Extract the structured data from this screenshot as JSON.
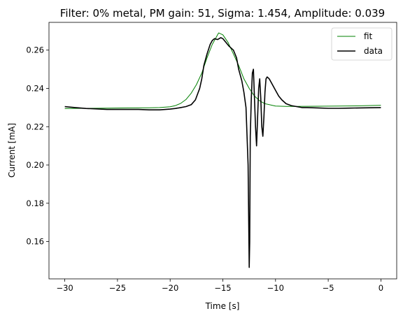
{
  "chart_data": {
    "type": "line",
    "title": "Filter: 0% metal, PM gain: 51, Sigma: 1.454, Amplitude: 0.039",
    "xlabel": "Time [s]",
    "ylabel": "Current [mA]",
    "xlim": [
      -31.5,
      1.5
    ],
    "ylim": [
      0.1405,
      0.2745
    ],
    "xticks": [
      -30,
      -25,
      -20,
      -15,
      -10,
      -5,
      0
    ],
    "xtick_labels": [
      "−30",
      "−25",
      "−20",
      "−15",
      "−10",
      "−5",
      "0"
    ],
    "yticks": [
      0.16,
      0.18,
      0.2,
      0.22,
      0.24,
      0.26
    ],
    "ytick_labels": [
      "0.16",
      "0.18",
      "0.20",
      "0.22",
      "0.24",
      "0.26"
    ],
    "grid": false,
    "legend_position": "top-right",
    "series": [
      {
        "name": "fit",
        "color": "#008000",
        "line_width": 1,
        "x": [
          -30,
          -28,
          -26,
          -24,
          -22,
          -21,
          -20,
          -19.5,
          -19,
          -18.5,
          -18,
          -17.5,
          -17,
          -16.5,
          -16,
          -15.5,
          -15.4,
          -15,
          -14.5,
          -14,
          -13.5,
          -13,
          -12.5,
          -12,
          -11.5,
          -11,
          -10,
          -9,
          -8,
          -6,
          -4,
          -2,
          0
        ],
        "y": [
          0.2295,
          0.2296,
          0.2297,
          0.2298,
          0.2299,
          0.23,
          0.2304,
          0.231,
          0.2322,
          0.2342,
          0.2375,
          0.242,
          0.248,
          0.256,
          0.263,
          0.268,
          0.269,
          0.268,
          0.264,
          0.258,
          0.252,
          0.245,
          0.24,
          0.236,
          0.2335,
          0.232,
          0.2308,
          0.2306,
          0.2306,
          0.2307,
          0.2308,
          0.2309,
          0.2312
        ]
      },
      {
        "name": "data",
        "color": "#000000",
        "line_width": 1.6,
        "x": [
          -30,
          -29,
          -28,
          -27,
          -26,
          -25,
          -24,
          -23,
          -22,
          -21,
          -20,
          -19.5,
          -19,
          -18.5,
          -18,
          -17.6,
          -17.2,
          -17,
          -16.8,
          -16.5,
          -16.2,
          -16,
          -15.8,
          -15.5,
          -15.2,
          -15,
          -14.7,
          -14.4,
          -14,
          -13.7,
          -13.5,
          -13.2,
          -13,
          -12.8,
          -12.7,
          -12.6,
          -12.5,
          -12.45,
          -12.4,
          -12.3,
          -12.2,
          -12.1,
          -12.0,
          -11.9,
          -11.8,
          -11.7,
          -11.6,
          -11.5,
          -11.4,
          -11.3,
          -11.2,
          -11.1,
          -11.0,
          -10.9,
          -10.8,
          -10.7,
          -10.6,
          -10.5,
          -10.3,
          -10.0,
          -9.7,
          -9.4,
          -9.0,
          -8.5,
          -8.0,
          -7.5,
          -7.0,
          -6.0,
          -5.0,
          -4.0,
          -3.0,
          -2.0,
          -1.0,
          0
        ],
        "y": [
          0.2305,
          0.23,
          0.2295,
          0.2293,
          0.229,
          0.229,
          0.229,
          0.229,
          0.2288,
          0.2288,
          0.2292,
          0.2295,
          0.23,
          0.2305,
          0.2315,
          0.234,
          0.24,
          0.245,
          0.252,
          0.258,
          0.263,
          0.265,
          0.266,
          0.2655,
          0.2665,
          0.266,
          0.264,
          0.262,
          0.26,
          0.256,
          0.25,
          0.244,
          0.238,
          0.23,
          0.215,
          0.2,
          0.1465,
          0.16,
          0.215,
          0.235,
          0.248,
          0.25,
          0.235,
          0.22,
          0.21,
          0.225,
          0.24,
          0.245,
          0.235,
          0.22,
          0.215,
          0.225,
          0.238,
          0.245,
          0.246,
          0.2455,
          0.245,
          0.244,
          0.242,
          0.239,
          0.236,
          0.234,
          0.232,
          0.231,
          0.2305,
          0.23,
          0.23,
          0.2298,
          0.2296,
          0.2296,
          0.2297,
          0.2298,
          0.2299,
          0.23
        ]
      }
    ]
  }
}
